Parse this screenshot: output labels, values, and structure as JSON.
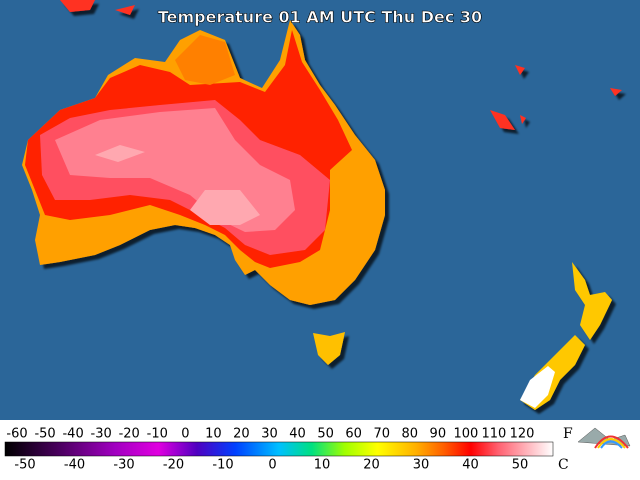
{
  "title": "Temperature 01 AM UTC Thu Dec 30",
  "scale": {
    "fahrenheit": {
      "unit": "F",
      "ticks": [
        -60,
        -50,
        -40,
        -30,
        -20,
        -10,
        0,
        10,
        20,
        30,
        40,
        50,
        60,
        70,
        80,
        90,
        100,
        110,
        120
      ]
    },
    "celsius": {
      "unit": "C",
      "ticks": [
        -50,
        -40,
        -30,
        -20,
        -10,
        0,
        10,
        20,
        30,
        40,
        50
      ]
    }
  }
}
